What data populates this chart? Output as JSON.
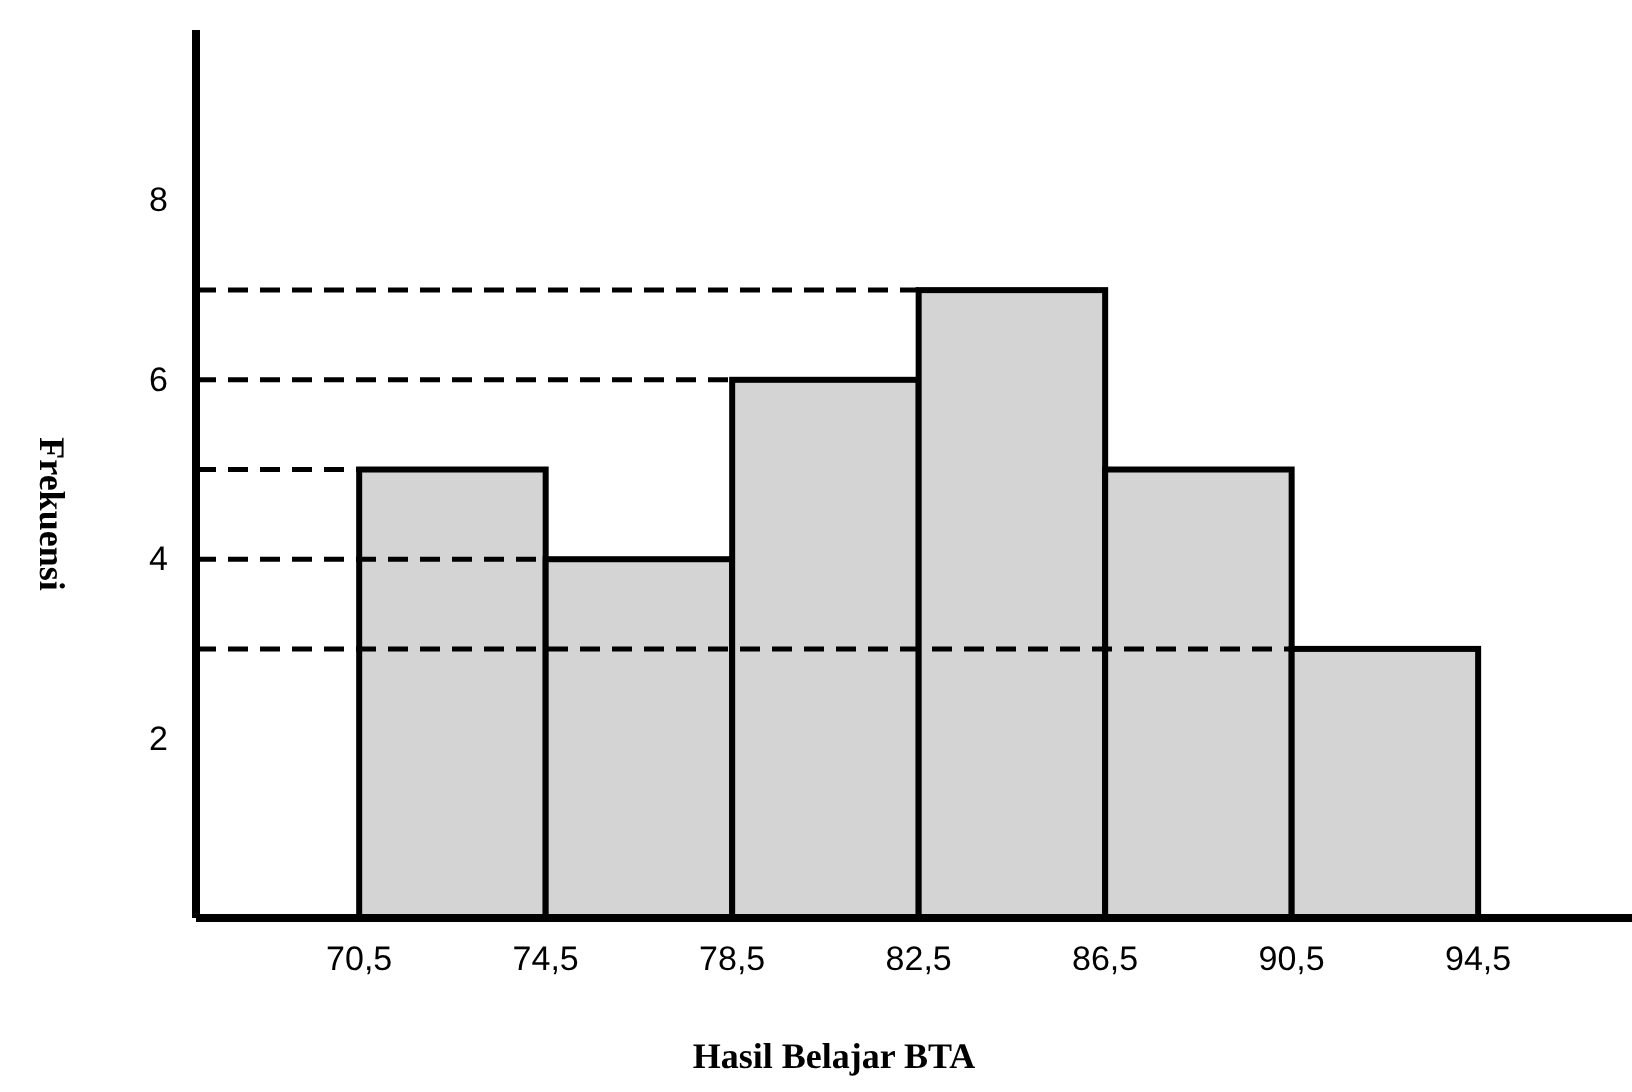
{
  "chart_data": {
    "type": "histogram",
    "xlabel": "Hasil Belajar BTA",
    "ylabel": "Frekuensi",
    "bins": [
      70.5,
      74.5,
      78.5,
      82.5,
      86.5,
      90.5,
      94.5
    ],
    "values": [
      5,
      4,
      6,
      7,
      5,
      3
    ],
    "color": "#d4d4d4",
    "xlim": [
      67,
      97.8
    ],
    "ylim": [
      0,
      9.9
    ],
    "xticks": [
      {
        "value": 70.5,
        "label": "70,5"
      },
      {
        "value": 74.5,
        "label": "74,5"
      },
      {
        "value": 78.5,
        "label": "78,5"
      },
      {
        "value": 82.5,
        "label": "82,5"
      },
      {
        "value": 86.5,
        "label": "86,5"
      },
      {
        "value": 90.5,
        "label": "90,5"
      },
      {
        "value": 94.5,
        "label": "94,5"
      }
    ],
    "yticks": [
      2,
      4,
      6,
      8
    ],
    "ref_lines": [
      {
        "axis": "y",
        "value": 7,
        "line_style": "dashed"
      },
      {
        "axis": "y",
        "value": 6,
        "line_style": "dashed"
      },
      {
        "axis": "y",
        "value": 5,
        "line_style": "dashed"
      },
      {
        "axis": "y",
        "value": 4,
        "line_style": "dashed"
      },
      {
        "axis": "y",
        "value": 3,
        "line_style": "dashed"
      }
    ],
    "grid": false
  }
}
